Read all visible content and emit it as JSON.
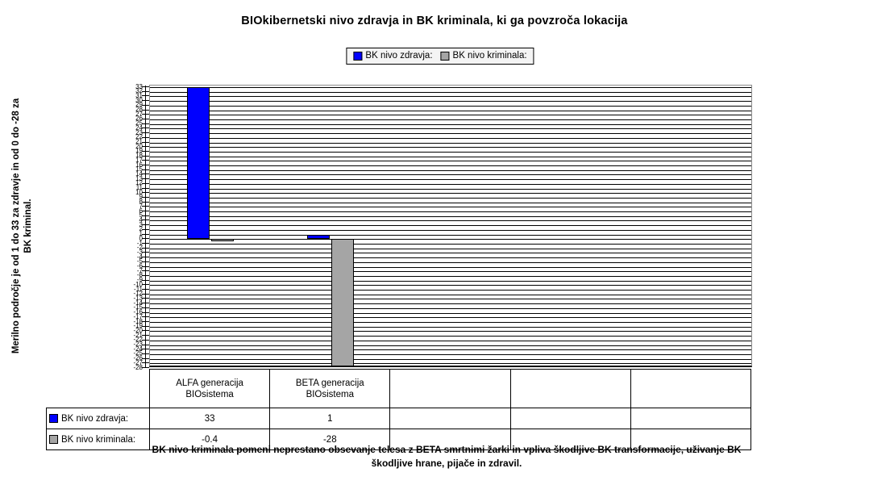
{
  "title": "BIOkibernetski nivo zdravja in BK kriminala, ki ga povzroča lokacija",
  "legend": {
    "items": [
      {
        "label": "BK nivo zdravja:",
        "color": "#0000ff"
      },
      {
        "label": "BK nivo kriminala:",
        "color": "#a5a5a5"
      }
    ]
  },
  "y_axis": {
    "title_line1": "Merilno področje je od 1 do 33 za zdravje in od 0 do -28 za",
    "title_line2": "BK kriminal.",
    "max": 33,
    "min": -28,
    "step": 1,
    "ticks": [
      33,
      32,
      31,
      30,
      29,
      28,
      27,
      26,
      25,
      24,
      23,
      22,
      21,
      20,
      19,
      18,
      17,
      16,
      15,
      14,
      13,
      12,
      11,
      10,
      9,
      8,
      7,
      6,
      5,
      4,
      3,
      2,
      1,
      0,
      -1,
      -2,
      -3,
      -4,
      -5,
      -6,
      -7,
      -8,
      -9,
      -10,
      -11,
      -12,
      -13,
      -14,
      -15,
      -16,
      -17,
      -18,
      -19,
      -20,
      -21,
      -22,
      -23,
      -24,
      -25,
      -26,
      -27,
      -28
    ]
  },
  "chart_data": {
    "type": "bar",
    "title": "BIOkibernetski nivo zdravja in BK kriminala, ki ga povzroča lokacija",
    "categories": [
      "ALFA generacija BIOsistema",
      "BETA generacija BIOsistema",
      "",
      "",
      ""
    ],
    "series": [
      {
        "name": "BK nivo zdravja:",
        "color": "#0000ff",
        "values": [
          33,
          1,
          null,
          null,
          null
        ]
      },
      {
        "name": "BK nivo kriminala:",
        "color": "#a5a5a5",
        "values": [
          -0.4,
          -28,
          null,
          null,
          null
        ]
      }
    ],
    "xlabel": "",
    "ylabel": "Merilno področje je od 1 do 33 za zdravje in od 0 do -28 za BK kriminal.",
    "ylim": [
      -28,
      33
    ],
    "ytick_step": 1,
    "grid": "horizontal",
    "legend_position": "top"
  },
  "table": {
    "rows": [
      {
        "label": "BK nivo zdravja:",
        "color": "#0000ff",
        "values": [
          "33",
          "1",
          "",
          "",
          ""
        ]
      },
      {
        "label": "BK nivo kriminala:",
        "color": "#a5a5a5",
        "values": [
          "-0.4",
          "-28",
          "",
          "",
          ""
        ]
      }
    ]
  },
  "footnote": {
    "line1": "BK nivo kriminala pomeni neprestano obsevanje telesa z BETA  smrtnimi žarki in vpliva škodljive BK transformacije, uživanje BK",
    "line2": "škodljive hrane, pijače in zdravil."
  }
}
